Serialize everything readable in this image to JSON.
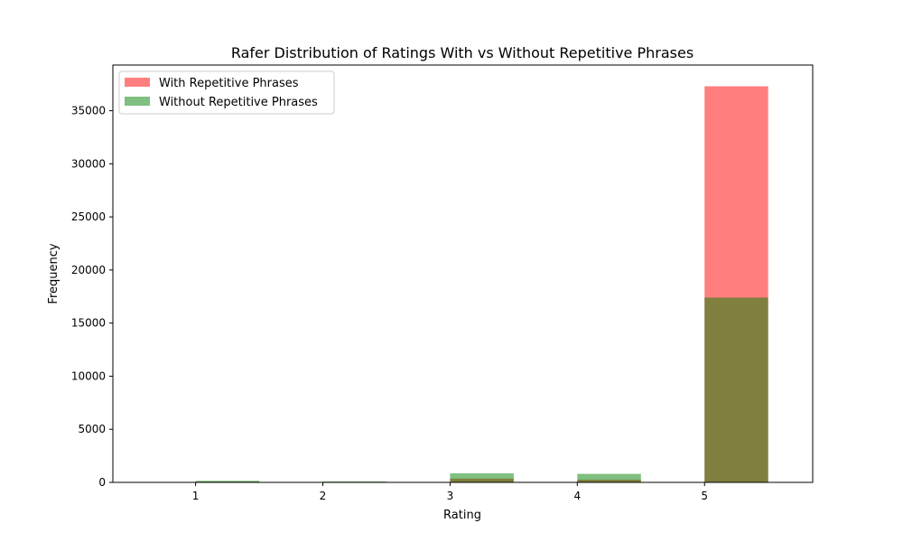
{
  "chart_data": {
    "type": "bar",
    "title": "Rafer Distribution of Ratings With vs Without Repetitive Phrases",
    "xlabel": "Rating",
    "ylabel": "Frequency",
    "xlim": [
      0.35,
      5.85
    ],
    "ylim": [
      0,
      39300
    ],
    "xticks": [
      1,
      2,
      3,
      4,
      5
    ],
    "yticks": [
      0,
      5000,
      10000,
      15000,
      20000,
      25000,
      30000,
      35000
    ],
    "bin_width": 0.5,
    "legend_position": "top-left",
    "grid": false,
    "series": [
      {
        "name": "With Repetitive Phrases",
        "color": "#ff0000",
        "alpha": 0.5,
        "bins": [
          1,
          2,
          3,
          4,
          5
        ],
        "values": [
          60,
          20,
          350,
          250,
          37300
        ]
      },
      {
        "name": "Without Repetitive Phrases",
        "color": "#008000",
        "alpha": 0.5,
        "bins": [
          1,
          2,
          3,
          4,
          5
        ],
        "values": [
          150,
          90,
          850,
          800,
          17400
        ]
      }
    ]
  }
}
